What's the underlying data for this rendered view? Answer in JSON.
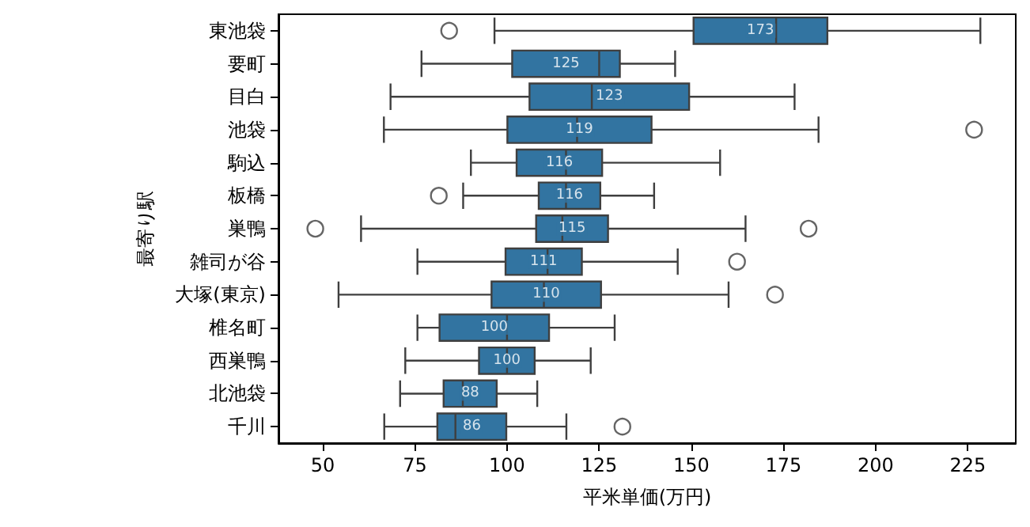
{
  "chart_data": {
    "type": "box",
    "orientation": "horizontal",
    "xlabel": "平米単価(万円)",
    "ylabel": "最寄り駅",
    "categories": [
      "東池袋",
      "要町",
      "目白",
      "池袋",
      "駒込",
      "板橋",
      "巣鴨",
      "雑司が谷",
      "大塚(東京)",
      "椎名町",
      "西巣鴨",
      "北池袋",
      "千川"
    ],
    "color": "#3274a1",
    "grid": false,
    "marker": "circle",
    "value_labels": [
      "173",
      "125",
      "123",
      "119",
      "116",
      "116",
      "115",
      "111",
      "110",
      "100",
      "100",
      "88",
      "86"
    ],
    "xlim": [
      38,
      238
    ],
    "xticks": [
      50,
      75,
      100,
      125,
      150,
      175,
      200,
      225
    ],
    "boxes": [
      {
        "low": 96.6,
        "q1": 150.6,
        "median": 173,
        "q3": 186.9,
        "high": 228.4,
        "outliers": [
          84.3
        ]
      },
      {
        "low": 76.8,
        "q1": 101.4,
        "median": 125,
        "q3": 130.6,
        "high": 145.6
      },
      {
        "low": 68.4,
        "q1": 106.1,
        "median": 123,
        "q3": 149.4,
        "high": 178.0
      },
      {
        "low": 66.6,
        "q1": 100.1,
        "median": 119,
        "q3": 139.2,
        "high": 184.5,
        "outliers": [
          226.7
        ]
      },
      {
        "low": 90.2,
        "q1": 102.6,
        "median": 116,
        "q3": 125.8,
        "high": 157.8
      },
      {
        "low": 88.1,
        "q1": 108.6,
        "median": 116,
        "q3": 125.3,
        "high": 139.9,
        "outliers": [
          81.5
        ]
      },
      {
        "low": 60.4,
        "q1": 107.9,
        "median": 115,
        "q3": 127.4,
        "high": 164.7,
        "outliers": [
          48.0,
          181.8
        ]
      },
      {
        "low": 75.7,
        "q1": 99.6,
        "median": 111,
        "q3": 120.3,
        "high": 146.3,
        "outliers": [
          162.4
        ]
      },
      {
        "low": 54.3,
        "q1": 95.8,
        "median": 110,
        "q3": 125.5,
        "high": 160.1,
        "outliers": [
          172.7
        ]
      },
      {
        "low": 75.7,
        "q1": 81.7,
        "median": 100,
        "q3": 111.4,
        "high": 129.2
      },
      {
        "low": 72.4,
        "q1": 92.4,
        "median": 100,
        "q3": 107.5,
        "high": 122.7
      },
      {
        "low": 71.0,
        "q1": 82.8,
        "median": 88,
        "q3": 97.2,
        "high": 108.2
      },
      {
        "low": 66.7,
        "q1": 81.1,
        "median": 86,
        "q3": 99.8,
        "high": 116.1,
        "outliers": [
          131.3
        ]
      }
    ]
  }
}
